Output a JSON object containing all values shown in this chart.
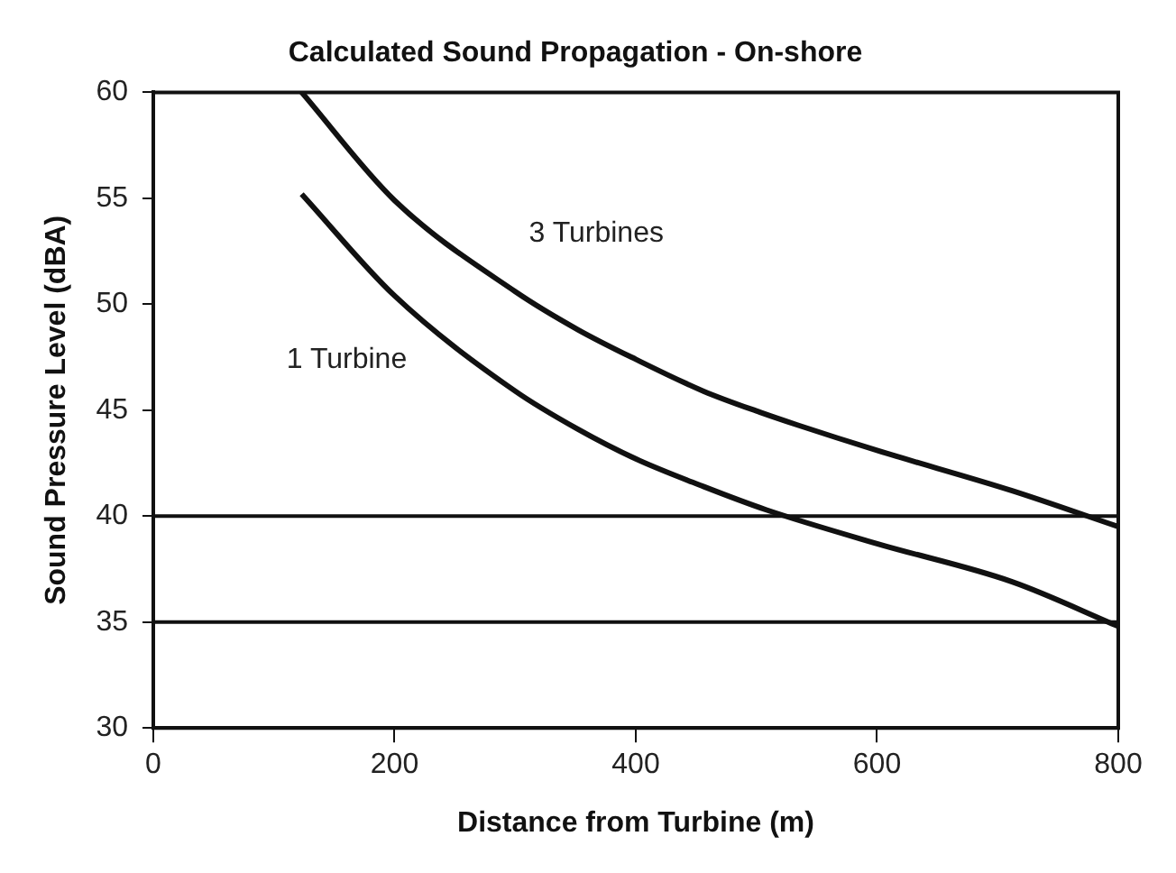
{
  "chart_data": {
    "type": "line",
    "title": "Calculated Sound Propagation - On-shore",
    "xlabel": "Distance from Turbine (m)",
    "ylabel": "Sound Pressure Level (dBA)",
    "xlim": [
      0,
      800
    ],
    "xticks": [
      0,
      200,
      400,
      600,
      800
    ],
    "ylim": [
      30,
      60
    ],
    "yticks": [
      30,
      35,
      40,
      45,
      50,
      55,
      60
    ],
    "grid": false,
    "legend": false,
    "marker": "none",
    "line_style": "solid",
    "series": [
      {
        "name": "3 Turbines",
        "color": "#111111",
        "x": [
          123,
          200,
          300,
          352,
          400,
          456,
          503,
          534,
          600,
          712,
          800
        ],
        "values": [
          60,
          54.9,
          50.6,
          48.8,
          47.4,
          45.9,
          44.9,
          44.3,
          43.1,
          41.2,
          39.5
        ]
      },
      {
        "name": "1 Turbine",
        "color": "#111111",
        "x": [
          123,
          200,
          300,
          352,
          400,
          456,
          508,
          600,
          712,
          800
        ],
        "values": [
          55.2,
          50.4,
          45.9,
          44.1,
          42.7,
          41.4,
          40.3,
          38.7,
          36.9,
          34.8
        ]
      }
    ],
    "ref_lines": [
      {
        "axis": "y",
        "value": 40,
        "color": "#111111"
      },
      {
        "axis": "y",
        "value": 35,
        "color": "#111111"
      }
    ]
  }
}
